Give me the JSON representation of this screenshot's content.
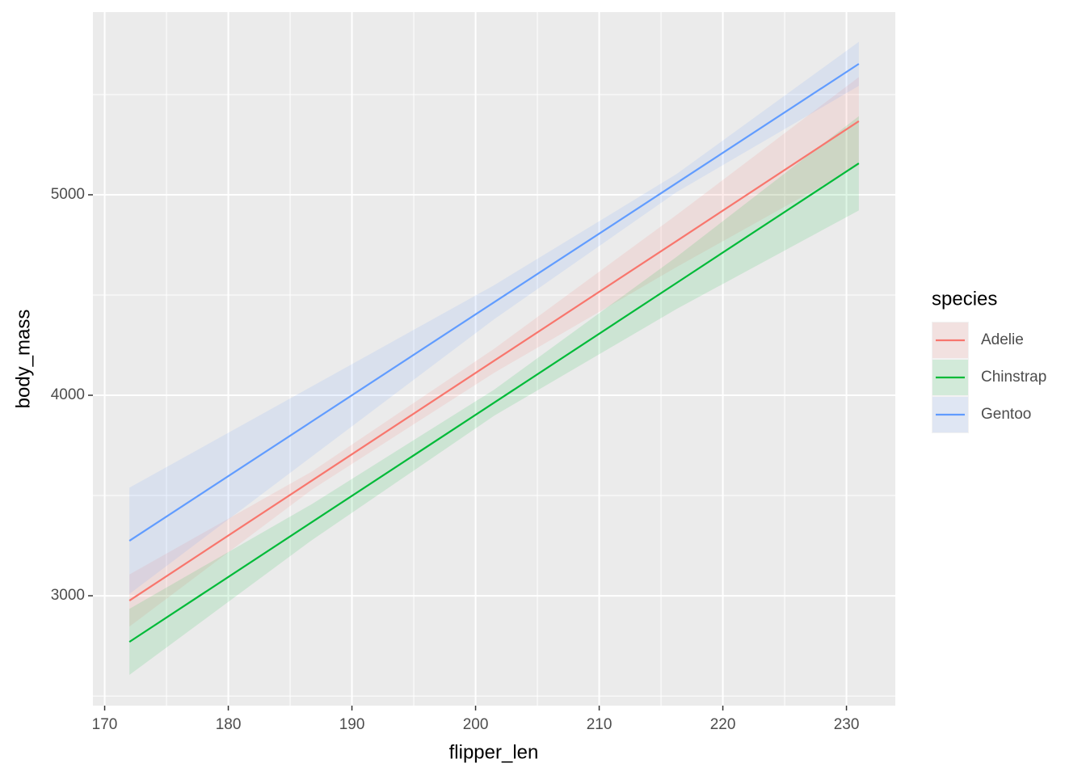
{
  "chart_data": {
    "type": "line",
    "x_label": "flipper_len",
    "y_label": "body_mass",
    "legend_title": "species",
    "x": [
      172,
      186.75,
      201.5,
      216.25,
      231
    ],
    "series": [
      {
        "name": "Adelie",
        "color": "#F8766D",
        "values": [
          2976,
          3574,
          4172,
          4769,
          5367
        ],
        "lower": [
          2846,
          3529,
          4112,
          4639,
          5147
        ],
        "upper": [
          3106,
          3619,
          4232,
          4899,
          5587
        ]
      },
      {
        "name": "Chinstrap",
        "color": "#00BA38",
        "values": [
          2770,
          3367,
          3963,
          4560,
          5157
        ],
        "lower": [
          2605,
          3277,
          3898,
          4430,
          4922
        ],
        "upper": [
          2935,
          3457,
          4028,
          4690,
          5392
        ]
      },
      {
        "name": "Gentoo",
        "color": "#619CFF",
        "values": [
          3274,
          3869,
          4464,
          5058,
          5653
        ],
        "lower": [
          3009,
          3694,
          4379,
          5013,
          5543
        ],
        "upper": [
          3539,
          4044,
          4549,
          5103,
          5763
        ]
      }
    ],
    "xlim": [
      169.05,
      233.95
    ],
    "ylim": [
      2452,
      5911
    ],
    "xticks": [
      170,
      180,
      190,
      200,
      210,
      220,
      230
    ],
    "yticks": [
      3000,
      4000,
      5000
    ],
    "x_minor_ticks": [
      175,
      185,
      195,
      205,
      215,
      225
    ],
    "y_minor_ticks": [
      2500,
      3500,
      4500,
      5500
    ],
    "grid": true,
    "legend": "right",
    "ribbon": true
  }
}
